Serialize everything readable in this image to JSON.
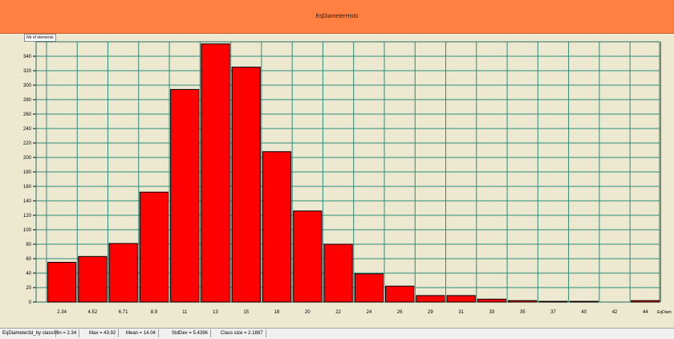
{
  "chart_data": {
    "type": "bar",
    "title": "EqDiameterHisto",
    "ylabel": "Nb of elements",
    "xlabel": "EqDiam",
    "categories": [
      "2.34",
      "4.52",
      "6.71",
      "8.9",
      "11",
      "13",
      "15",
      "18",
      "20",
      "22",
      "24",
      "26",
      "29",
      "31",
      "33",
      "35",
      "37",
      "40",
      "42",
      "44"
    ],
    "values": [
      55,
      63,
      81,
      152,
      294,
      357,
      325,
      208,
      126,
      80,
      39,
      22,
      9,
      9,
      4,
      2,
      1,
      1,
      0,
      2
    ],
    "ylim": [
      0,
      360
    ],
    "yticks": [
      0,
      20,
      40,
      60,
      80,
      100,
      120,
      140,
      160,
      180,
      200,
      220,
      240,
      260,
      280,
      300,
      320,
      340
    ],
    "grid": true,
    "colors": {
      "bar": "#ff0000",
      "grid": "#2e8b7a",
      "background": "#ece9d0",
      "header": "#ff8040"
    }
  },
  "status": {
    "name": "EqDiameter3d_by class",
    "min": "Min = 2.34",
    "max": "Max = 43.92",
    "mean": "Mean = 14.04",
    "stddev": "StdDev = 5.4396",
    "class_size": "Class size = 2.1887"
  }
}
